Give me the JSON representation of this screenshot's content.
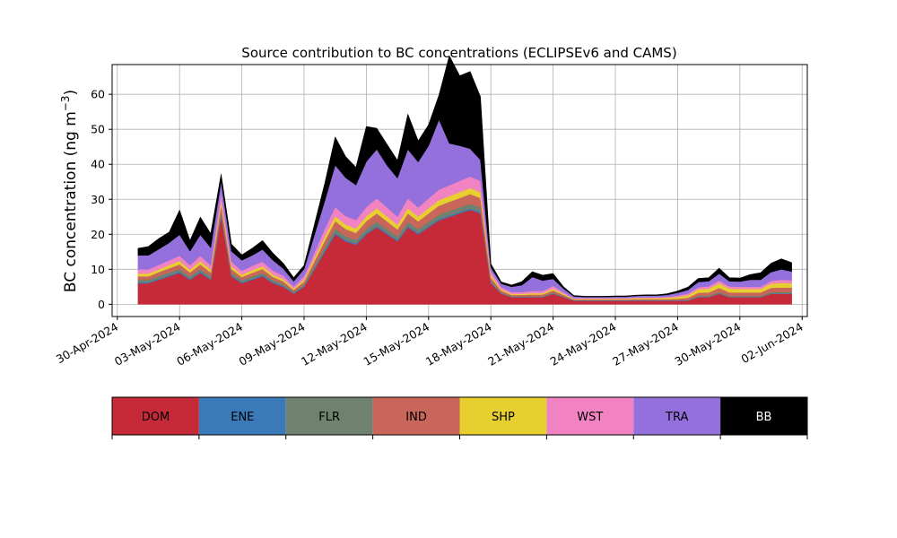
{
  "chart_data": {
    "type": "area",
    "title": "Source contribution to BC concentrations (ECLIPSEv6 and CAMS)",
    "ylabel": "BC concentration (ng m",
    "ylabel_sup": "−3",
    "ylabel_close": ")",
    "ylim": [
      -3.5,
      68.5
    ],
    "yticks": [
      0,
      10,
      20,
      30,
      40,
      50,
      60
    ],
    "xlim": [
      "2024-04-29T18:00",
      "2024-06-02T06:00"
    ],
    "xticks": [
      "30-Apr-2024",
      "03-May-2024",
      "06-May-2024",
      "09-May-2024",
      "12-May-2024",
      "15-May-2024",
      "18-May-2024",
      "21-May-2024",
      "24-May-2024",
      "27-May-2024",
      "30-May-2024",
      "02-Jun-2024"
    ],
    "xtick_dates": [
      "2024-04-30",
      "2024-05-03",
      "2024-05-06",
      "2024-05-09",
      "2024-05-12",
      "2024-05-15",
      "2024-05-18",
      "2024-05-21",
      "2024-05-24",
      "2024-05-27",
      "2024-05-30",
      "2024-06-02"
    ],
    "grid": true,
    "x": [
      "2024-05-01T00:00",
      "2024-05-01T12:00",
      "2024-05-02T00:00",
      "2024-05-02T12:00",
      "2024-05-03T00:00",
      "2024-05-03T12:00",
      "2024-05-04T00:00",
      "2024-05-04T12:00",
      "2024-05-05T00:00",
      "2024-05-05T12:00",
      "2024-05-06T00:00",
      "2024-05-06T12:00",
      "2024-05-07T00:00",
      "2024-05-07T12:00",
      "2024-05-08T00:00",
      "2024-05-08T12:00",
      "2024-05-09T00:00",
      "2024-05-09T12:00",
      "2024-05-10T00:00",
      "2024-05-10T12:00",
      "2024-05-11T00:00",
      "2024-05-11T12:00",
      "2024-05-12T00:00",
      "2024-05-12T12:00",
      "2024-05-13T00:00",
      "2024-05-13T12:00",
      "2024-05-14T00:00",
      "2024-05-14T12:00",
      "2024-05-15T00:00",
      "2024-05-15T12:00",
      "2024-05-16T00:00",
      "2024-05-16T12:00",
      "2024-05-17T00:00",
      "2024-05-17T12:00",
      "2024-05-18T00:00",
      "2024-05-18T12:00",
      "2024-05-19T00:00",
      "2024-05-19T12:00",
      "2024-05-20T00:00",
      "2024-05-20T12:00",
      "2024-05-21T00:00",
      "2024-05-21T12:00",
      "2024-05-22T00:00",
      "2024-05-22T12:00",
      "2024-05-23T00:00",
      "2024-05-23T12:00",
      "2024-05-24T00:00",
      "2024-05-24T12:00",
      "2024-05-25T00:00",
      "2024-05-25T12:00",
      "2024-05-26T00:00",
      "2024-05-26T12:00",
      "2024-05-27T00:00",
      "2024-05-27T12:00",
      "2024-05-28T00:00",
      "2024-05-28T12:00",
      "2024-05-29T00:00",
      "2024-05-29T12:00",
      "2024-05-30T00:00",
      "2024-05-30T12:00",
      "2024-05-31T00:00",
      "2024-05-31T12:00",
      "2024-06-01T00:00",
      "2024-06-01T12:00"
    ],
    "series": [
      {
        "name": "DOM",
        "color": "#c62a38",
        "values": [
          6,
          6,
          7,
          8,
          9,
          7,
          9,
          7,
          25,
          8,
          6,
          7,
          8,
          6,
          5,
          3,
          5,
          10,
          15,
          20,
          18,
          17,
          20,
          22,
          20,
          18,
          22,
          20,
          22,
          24,
          25,
          26,
          27,
          26,
          6,
          3,
          2,
          2,
          2,
          2,
          3,
          2,
          1,
          1,
          1,
          1,
          1,
          1,
          1,
          1,
          1,
          1,
          1,
          1,
          2,
          2,
          3,
          2,
          2,
          2,
          2,
          3,
          3,
          3
        ]
      },
      {
        "name": "ENE",
        "color": "#3a7ab8",
        "values": [
          0.3,
          0.3,
          0.3,
          0.3,
          0.3,
          0.3,
          0.3,
          0.3,
          0.3,
          0.3,
          0.3,
          0.3,
          0.3,
          0.3,
          0.3,
          0.2,
          0.2,
          0.3,
          0.4,
          0.4,
          0.4,
          0.4,
          0.4,
          0.4,
          0.4,
          0.4,
          0.4,
          0.4,
          0.4,
          0.4,
          0.4,
          0.4,
          0.4,
          0.4,
          0.2,
          0.1,
          0.1,
          0.1,
          0.1,
          0.1,
          0.1,
          0.1,
          0.1,
          0.1,
          0.1,
          0.1,
          0.1,
          0.1,
          0.1,
          0.1,
          0.1,
          0.1,
          0.1,
          0.1,
          0.1,
          0.1,
          0.1,
          0.1,
          0.1,
          0.1,
          0.1,
          0.1,
          0.1,
          0.1
        ]
      },
      {
        "name": "FLR",
        "color": "#6f8270",
        "values": [
          0.7,
          0.7,
          0.8,
          0.8,
          0.8,
          0.7,
          0.8,
          0.7,
          1.2,
          0.7,
          0.6,
          0.7,
          0.7,
          0.6,
          0.5,
          0.4,
          0.5,
          0.8,
          1,
          1.2,
          1.1,
          1,
          1.2,
          1.2,
          1.1,
          1,
          1.2,
          1.1,
          1.2,
          1.2,
          1.3,
          1.3,
          1.3,
          1.3,
          0.5,
          0.3,
          0.2,
          0.2,
          0.2,
          0.2,
          0.3,
          0.2,
          0.1,
          0.1,
          0.1,
          0.1,
          0.1,
          0.1,
          0.1,
          0.1,
          0.1,
          0.1,
          0.1,
          0.2,
          0.3,
          0.3,
          0.4,
          0.3,
          0.3,
          0.3,
          0.3,
          0.4,
          0.4,
          0.4
        ]
      },
      {
        "name": "IND",
        "color": "#c8665a",
        "values": [
          1,
          1,
          1.1,
          1.2,
          1.3,
          1.1,
          1.3,
          1.1,
          2,
          1.1,
          0.9,
          1,
          1.1,
          0.9,
          0.8,
          0.5,
          0.8,
          1.3,
          1.8,
          2.2,
          2,
          2,
          2.2,
          2.4,
          2.2,
          2,
          2.4,
          2.2,
          2.4,
          2.6,
          2.6,
          2.7,
          2.8,
          2.7,
          1,
          0.5,
          0.4,
          0.4,
          0.5,
          0.5,
          0.6,
          0.4,
          0.2,
          0.2,
          0.2,
          0.2,
          0.2,
          0.2,
          0.3,
          0.3,
          0.3,
          0.3,
          0.4,
          0.6,
          0.9,
          1,
          1.2,
          1,
          1,
          1,
          1,
          1.2,
          1.3,
          1.3
        ]
      },
      {
        "name": "SHP",
        "color": "#e6cf2e",
        "values": [
          0.8,
          0.8,
          0.8,
          0.9,
          1,
          0.8,
          1,
          0.8,
          1.2,
          0.8,
          0.7,
          0.8,
          0.8,
          0.7,
          0.6,
          0.4,
          0.6,
          0.9,
          1.2,
          1.4,
          1.3,
          1.3,
          1.4,
          1.5,
          1.4,
          1.3,
          1.5,
          1.4,
          1.5,
          1.6,
          1.6,
          1.7,
          1.7,
          1.7,
          0.7,
          0.4,
          0.3,
          0.3,
          0.4,
          0.4,
          0.5,
          0.3,
          0.2,
          0.2,
          0.2,
          0.2,
          0.2,
          0.2,
          0.3,
          0.3,
          0.3,
          0.4,
          0.5,
          0.7,
          1,
          1.1,
          1.3,
          1.1,
          1,
          1,
          1,
          1.2,
          1.3,
          1.2
        ]
      },
      {
        "name": "WST",
        "color": "#f183c2",
        "values": [
          1.2,
          1.2,
          1.3,
          1.4,
          1.5,
          1.3,
          1.5,
          1.3,
          2.5,
          1.3,
          1.1,
          1.2,
          1.3,
          1.1,
          1,
          0.6,
          1,
          1.6,
          2.2,
          2.6,
          2.4,
          2.4,
          2.6,
          2.8,
          2.6,
          2.4,
          2.8,
          2.6,
          2.8,
          3,
          3.1,
          3.2,
          3.3,
          3.2,
          1.2,
          0.6,
          0.5,
          0.5,
          0.6,
          0.6,
          0.8,
          0.5,
          0.2,
          0.2,
          0.2,
          0.2,
          0.2,
          0.2,
          0.2,
          0.2,
          0.2,
          0.3,
          0.4,
          0.5,
          0.6,
          0.6,
          0.8,
          0.6,
          0.6,
          0.6,
          0.6,
          0.8,
          0.9,
          0.9
        ]
      },
      {
        "name": "TRA",
        "color": "#9370db",
        "values": [
          4,
          4,
          4.5,
          5,
          6,
          4,
          6,
          5,
          3,
          3,
          3,
          3,
          3.5,
          3,
          2,
          1.5,
          2,
          5,
          8,
          12,
          11,
          10,
          13,
          14,
          12,
          11,
          14,
          13,
          15,
          20,
          12,
          10,
          8,
          6,
          1,
          1,
          1.5,
          2,
          4,
          3,
          2,
          1,
          0.5,
          0.3,
          0.3,
          0.3,
          0.4,
          0.4,
          0.4,
          0.5,
          0.5,
          0.5,
          0.8,
          1,
          1.5,
          1.5,
          2,
          1.5,
          1.5,
          2,
          2,
          2.5,
          3,
          2.5
        ]
      },
      {
        "name": "BB",
        "color": "#000000",
        "values": [
          2,
          2.5,
          3,
          3,
          7,
          3,
          5,
          4,
          2,
          2,
          1.5,
          2,
          2.5,
          2,
          1.5,
          1,
          1,
          3,
          5,
          8,
          6,
          5,
          10,
          6,
          6,
          5,
          10,
          6,
          6,
          7,
          25,
          20,
          22,
          18,
          1,
          0.5,
          0.5,
          1,
          1.5,
          1.5,
          1.5,
          0.5,
          0.2,
          0.2,
          0.2,
          0.2,
          0.2,
          0.2,
          0.2,
          0.2,
          0.2,
          0.3,
          0.5,
          0.8,
          1,
          1,
          1.5,
          1,
          1,
          1.5,
          2,
          2.5,
          3,
          2.5
        ]
      }
    ],
    "legend": [
      "DOM",
      "ENE",
      "FLR",
      "IND",
      "SHP",
      "WST",
      "TRA",
      "BB"
    ],
    "legend_placement": "bottom"
  }
}
